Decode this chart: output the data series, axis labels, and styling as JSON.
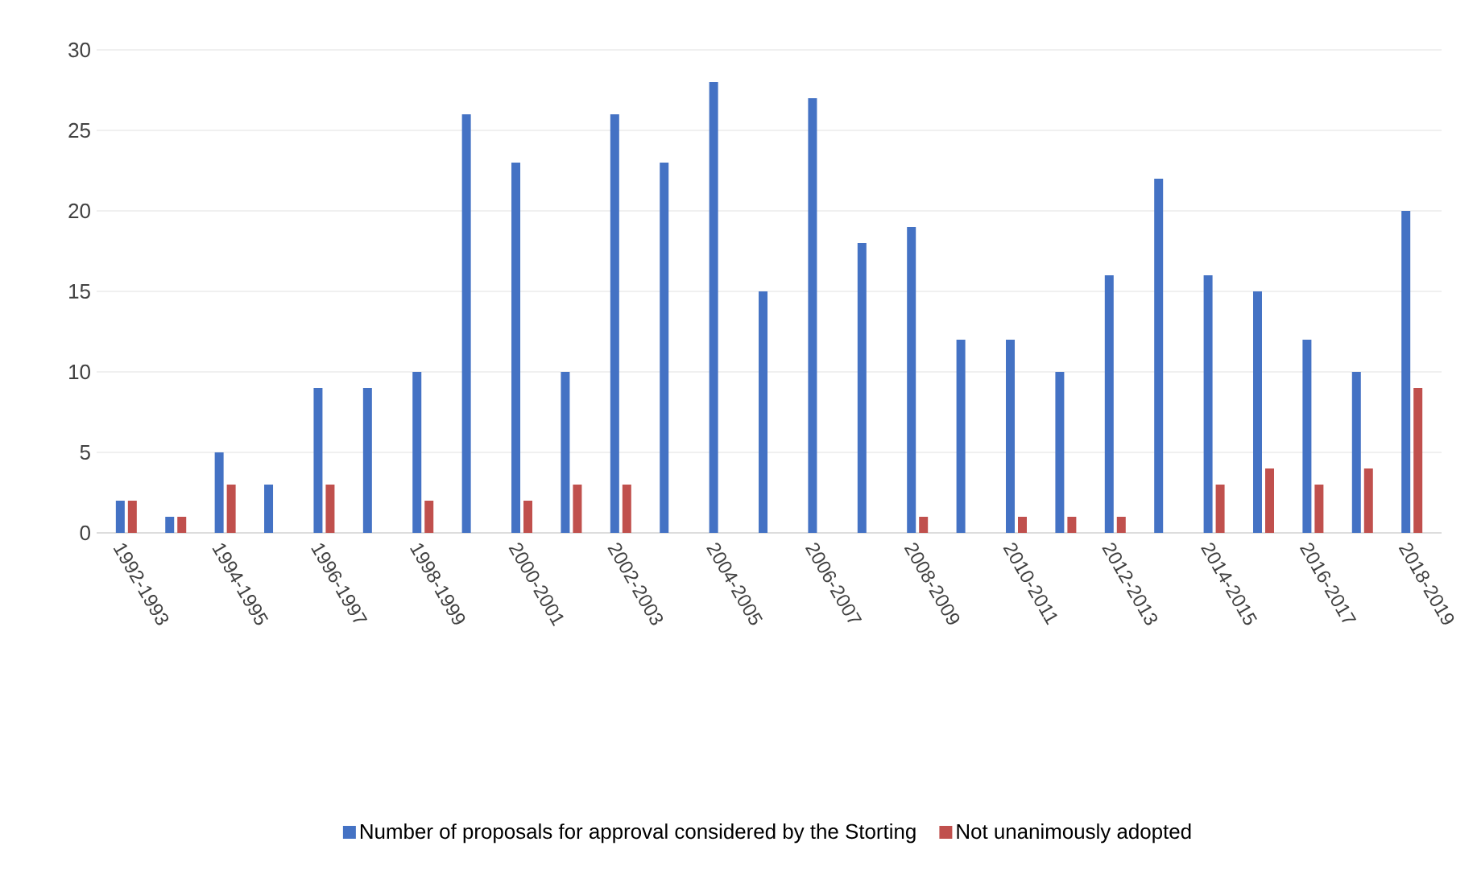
{
  "chart_data": {
    "type": "bar",
    "categories": [
      "1992-1993",
      null,
      "1994-1995",
      null,
      "1996-1997",
      null,
      "1998-1999",
      null,
      "2000-2001",
      null,
      "2002-2003",
      null,
      "2004-2005",
      null,
      "2006-2007",
      null,
      "2008-2009",
      null,
      "2010-2011",
      null,
      "2012-2013",
      null,
      "2014-2015",
      null,
      "2016-2017",
      null,
      "2018-2019"
    ],
    "series": [
      {
        "name": "Number of proposals for approval considered by the Storting",
        "color": "#4472c4",
        "values": [
          2,
          1,
          5,
          3,
          9,
          9,
          10,
          26,
          23,
          10,
          26,
          23,
          28,
          15,
          27,
          18,
          19,
          12,
          12,
          10,
          16,
          22,
          16,
          15,
          12,
          10,
          20
        ]
      },
      {
        "name": "Not unanimously adopted",
        "color": "#c0504d",
        "values": [
          2,
          1,
          3,
          0,
          3,
          0,
          2,
          0,
          2,
          3,
          3,
          0,
          0,
          0,
          0,
          0,
          1,
          0,
          1,
          1,
          1,
          0,
          3,
          4,
          3,
          4,
          9
        ]
      }
    ],
    "ylim": [
      0,
      30
    ],
    "yticks": [
      0,
      5,
      10,
      15,
      20,
      25,
      30
    ],
    "grid": "y",
    "legend": "bottom"
  }
}
